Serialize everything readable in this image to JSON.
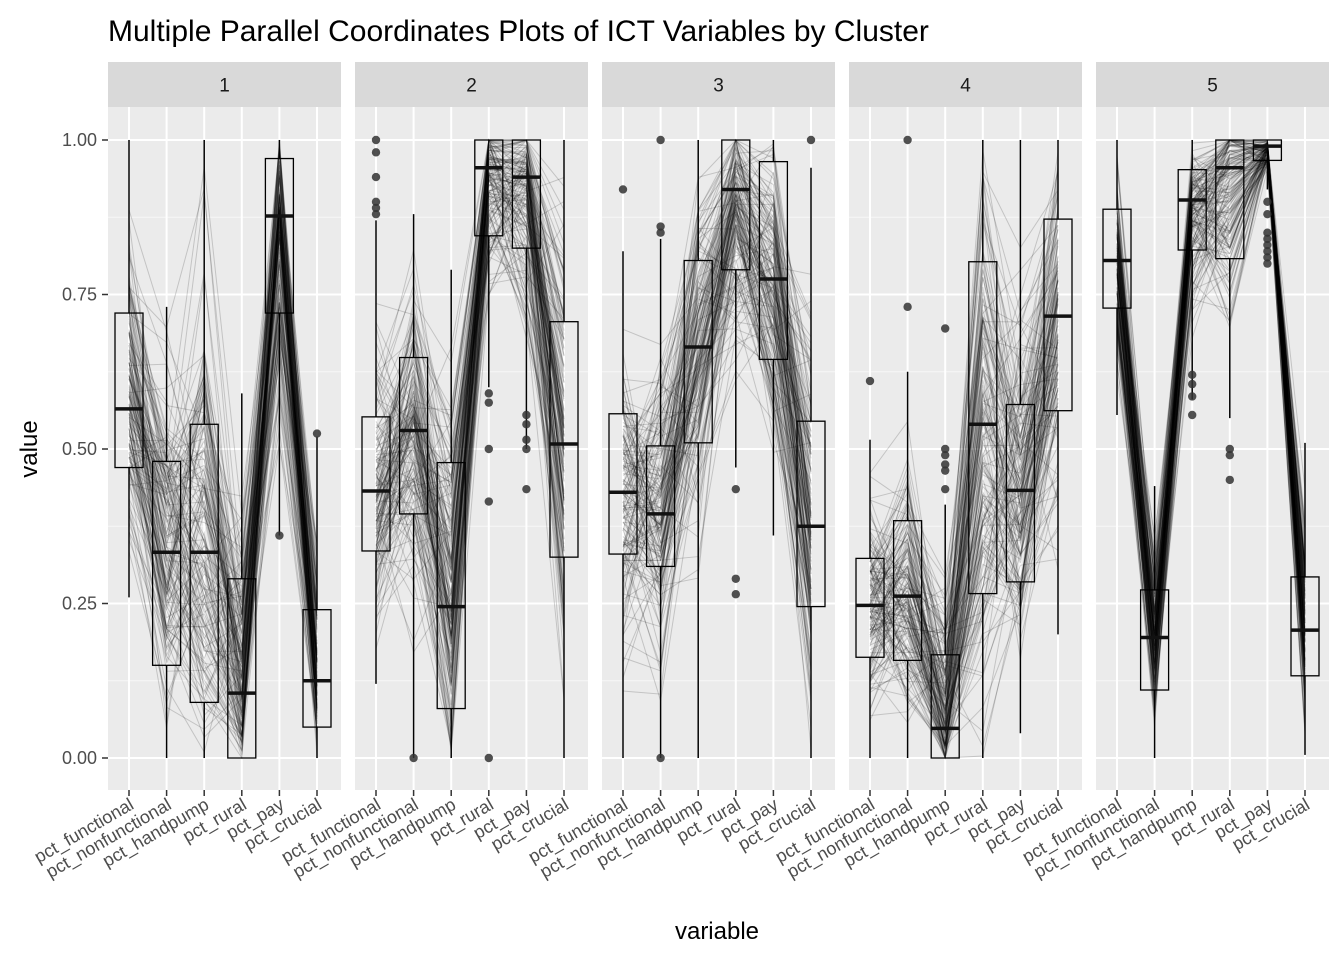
{
  "chart_data": {
    "type": "parallel-coordinates-boxplot",
    "title": "Multiple Parallel Coordinates Plots of ICT Variables by Cluster",
    "xlabel": "variable",
    "ylabel": "value",
    "ylim": [
      0,
      1
    ],
    "yticks": [
      "0.00",
      "0.25",
      "0.50",
      "0.75",
      "1.00"
    ],
    "ytick_values": [
      0,
      0.25,
      0.5,
      0.75,
      1.0
    ],
    "variables": [
      "pct_functional",
      "pct_nonfunctional",
      "pct_handpump",
      "pct_rural",
      "pct_pay",
      "pct_crucial"
    ],
    "grid": true,
    "legend": "none",
    "line_color": "#000000",
    "panel_background": "#ebebeb",
    "strip_background": "#d9d9d9",
    "panels": [
      {
        "cluster": "1",
        "boxes": [
          {
            "q1": 0.47,
            "median": 0.565,
            "q3": 0.72,
            "lo": 0.26,
            "hi": 1.0
          },
          {
            "q1": 0.15,
            "median": 0.333,
            "q3": 0.48,
            "lo": 0.0,
            "hi": 0.73
          },
          {
            "q1": 0.09,
            "median": 0.333,
            "q3": 0.54,
            "lo": 0.0,
            "hi": 1.0
          },
          {
            "q1": 0.0,
            "median": 0.105,
            "q3": 0.29,
            "lo": 0.0,
            "hi": 0.59
          },
          {
            "q1": 0.72,
            "median": 0.877,
            "q3": 0.97,
            "lo": 0.36,
            "hi": 1.0
          },
          {
            "q1": 0.05,
            "median": 0.125,
            "q3": 0.24,
            "lo": 0.0,
            "hi": 0.52
          }
        ],
        "outliers": [
          [
            4,
            0.36
          ],
          [
            5,
            0.525
          ]
        ]
      },
      {
        "cluster": "2",
        "boxes": [
          {
            "q1": 0.335,
            "median": 0.432,
            "q3": 0.552,
            "lo": 0.12,
            "hi": 0.87
          },
          {
            "q1": 0.395,
            "median": 0.53,
            "q3": 0.648,
            "lo": 0.0,
            "hi": 0.88
          },
          {
            "q1": 0.08,
            "median": 0.245,
            "q3": 0.478,
            "lo": 0.0,
            "hi": 0.79
          },
          {
            "q1": 0.845,
            "median": 0.955,
            "q3": 1.0,
            "lo": 0.6,
            "hi": 1.0
          },
          {
            "q1": 0.825,
            "median": 0.94,
            "q3": 1.0,
            "lo": 0.5,
            "hi": 1.0
          },
          {
            "q1": 0.325,
            "median": 0.508,
            "q3": 0.706,
            "lo": 0.0,
            "hi": 1.0
          }
        ],
        "outliers": [
          [
            0,
            1.0
          ],
          [
            0,
            0.98
          ],
          [
            0,
            0.94
          ],
          [
            0,
            0.9
          ],
          [
            0,
            0.89
          ],
          [
            0,
            0.88
          ],
          [
            1,
            0.0
          ],
          [
            3,
            0.59
          ],
          [
            3,
            0.575
          ],
          [
            3,
            0.5
          ],
          [
            3,
            0.415
          ],
          [
            3,
            0.0
          ],
          [
            4,
            0.555
          ],
          [
            4,
            0.54
          ],
          [
            4,
            0.515
          ],
          [
            4,
            0.5
          ],
          [
            4,
            0.435
          ]
        ]
      },
      {
        "cluster": "3",
        "boxes": [
          {
            "q1": 0.33,
            "median": 0.43,
            "q3": 0.557,
            "lo": 0.0,
            "hi": 0.82
          },
          {
            "q1": 0.31,
            "median": 0.395,
            "q3": 0.505,
            "lo": 0.0,
            "hi": 0.84
          },
          {
            "q1": 0.51,
            "median": 0.665,
            "q3": 0.805,
            "lo": 0.0,
            "hi": 1.0
          },
          {
            "q1": 0.79,
            "median": 0.92,
            "q3": 1.0,
            "lo": 0.47,
            "hi": 1.0
          },
          {
            "q1": 0.645,
            "median": 0.775,
            "q3": 0.965,
            "lo": 0.36,
            "hi": 1.0
          },
          {
            "q1": 0.245,
            "median": 0.375,
            "q3": 0.545,
            "lo": 0.0,
            "hi": 0.955
          }
        ],
        "outliers": [
          [
            0,
            0.92
          ],
          [
            1,
            1.0
          ],
          [
            1,
            0.86
          ],
          [
            1,
            0.85
          ],
          [
            1,
            0.0
          ],
          [
            3,
            0.435
          ],
          [
            3,
            0.29
          ],
          [
            3,
            0.265
          ],
          [
            5,
            1.0
          ]
        ]
      },
      {
        "cluster": "4",
        "boxes": [
          {
            "q1": 0.163,
            "median": 0.247,
            "q3": 0.323,
            "lo": 0.0,
            "hi": 0.515
          },
          {
            "q1": 0.158,
            "median": 0.262,
            "q3": 0.384,
            "lo": 0.0,
            "hi": 0.625
          },
          {
            "q1": 0.0,
            "median": 0.048,
            "q3": 0.167,
            "lo": 0.0,
            "hi": 0.41
          },
          {
            "q1": 0.266,
            "median": 0.54,
            "q3": 0.803,
            "lo": 0.0,
            "hi": 1.0
          },
          {
            "q1": 0.285,
            "median": 0.433,
            "q3": 0.572,
            "lo": 0.04,
            "hi": 1.0
          },
          {
            "q1": 0.562,
            "median": 0.715,
            "q3": 0.872,
            "lo": 0.2,
            "hi": 1.0
          }
        ],
        "outliers": [
          [
            0,
            0.61
          ],
          [
            1,
            1.0
          ],
          [
            1,
            0.73
          ],
          [
            2,
            0.695
          ],
          [
            2,
            0.5
          ],
          [
            2,
            0.49
          ],
          [
            2,
            0.475
          ],
          [
            2,
            0.465
          ],
          [
            2,
            0.435
          ]
        ]
      },
      {
        "cluster": "5",
        "boxes": [
          {
            "q1": 0.728,
            "median": 0.805,
            "q3": 0.888,
            "lo": 0.555,
            "hi": 1.0
          },
          {
            "q1": 0.11,
            "median": 0.195,
            "q3": 0.272,
            "lo": 0.0,
            "hi": 0.44
          },
          {
            "q1": 0.822,
            "median": 0.903,
            "q3": 0.952,
            "lo": 0.58,
            "hi": 1.0
          },
          {
            "q1": 0.808,
            "median": 0.955,
            "q3": 1.0,
            "lo": 0.55,
            "hi": 1.0
          },
          {
            "q1": 0.967,
            "median": 0.99,
            "q3": 1.0,
            "lo": 0.92,
            "hi": 1.0
          },
          {
            "q1": 0.133,
            "median": 0.207,
            "q3": 0.293,
            "lo": 0.005,
            "hi": 0.51
          }
        ],
        "outliers": [
          [
            2,
            0.62
          ],
          [
            2,
            0.605
          ],
          [
            2,
            0.585
          ],
          [
            2,
            0.555
          ],
          [
            3,
            0.5
          ],
          [
            3,
            0.49
          ],
          [
            3,
            0.45
          ],
          [
            4,
            0.9
          ],
          [
            4,
            0.88
          ],
          [
            4,
            0.85
          ],
          [
            4,
            0.84
          ],
          [
            4,
            0.83
          ],
          [
            4,
            0.82
          ],
          [
            4,
            0.81
          ],
          [
            4,
            0.8
          ]
        ]
      }
    ]
  }
}
